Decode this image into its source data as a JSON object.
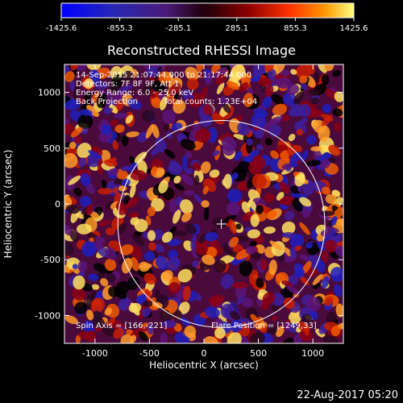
{
  "plot": {
    "title": "Reconstructed RHESSI Image",
    "xlabel": "Heliocentric X (arcsec)",
    "ylabel": "Heliocentric Y (arcsec)",
    "x_ticks": [
      "-1000",
      "-500",
      "0",
      "500",
      "1000"
    ],
    "y_ticks": [
      "1000",
      "500",
      "0",
      "-500",
      "-1000"
    ],
    "x_tick_values": [
      -1000,
      -500,
      0,
      500,
      1000
    ],
    "y_tick_values": [
      1000,
      500,
      0,
      -500,
      -1000
    ],
    "xlim": [
      -1280,
      1280
    ],
    "ylim": [
      -1250,
      1250
    ],
    "solar_radius_arcsec": 950,
    "map_center": [
      160,
      -180
    ]
  },
  "colorbar": {
    "labels": [
      "-1425.6",
      "-855.3",
      "-285.1",
      "285.1",
      "855.3",
      "1425.6"
    ],
    "values": [
      -1425.6,
      -855.3,
      -285.1,
      285.1,
      855.3,
      1425.6
    ]
  },
  "annotations": {
    "time_range": "14-Sep-2015 21:07:44.000 to 21:17:44.000",
    "detectors": "Detectors: 7F 8F 9F, Att 1",
    "energy": "Energy Range: 6.0 - 25.0 keV",
    "method": "Back Projection",
    "total_counts": "Total counts: 1.23E+04",
    "spin_axis": "Spin Axis = [166,-221]",
    "flare_position": "Flare Position = [1249,33]"
  },
  "footer": {
    "date": "22-Aug-2017 05:20"
  },
  "colors": {
    "background": "#000000",
    "limb": "#ffffff",
    "text": "#ffffff"
  }
}
